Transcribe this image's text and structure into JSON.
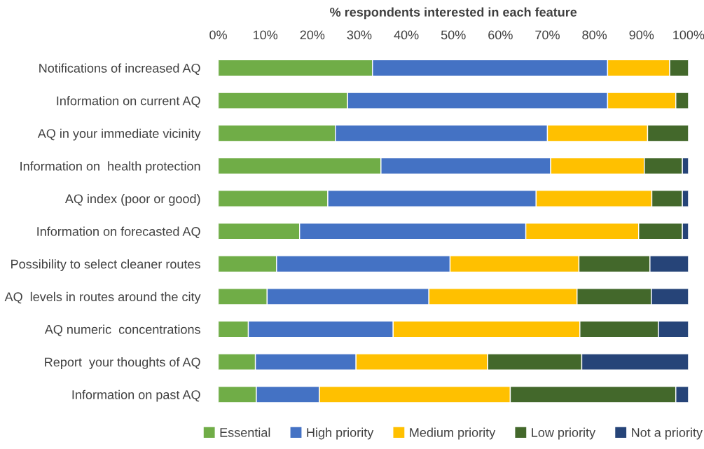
{
  "chart_data": {
    "type": "bar",
    "orientation": "horizontal",
    "stacked": true,
    "xlabel": "% respondents interested in each feature",
    "categories": [
      "Notifications of increased AQ",
      "Information on current AQ",
      "AQ in your immediate vicinity",
      "Information on  health protection",
      "AQ index (poor or good)",
      "Information on forecasted AQ",
      "Possibility to select cleaner routes",
      "AQ  levels in routes around the city",
      "AQ numeric  concentrations",
      "Report  your thoughts of AQ",
      "Information on past AQ"
    ],
    "series": [
      {
        "name": "Essential",
        "color": "#70ad47",
        "values": [
          32.8,
          27.5,
          24.9,
          34.6,
          23.3,
          17.3,
          12.4,
          10.4,
          6.4,
          7.9,
          8.1
        ]
      },
      {
        "name": "High priority",
        "color": "#4472c4",
        "values": [
          50.0,
          55.3,
          45.1,
          36.1,
          44.3,
          48.1,
          36.9,
          34.4,
          30.8,
          21.4,
          13.4
        ]
      },
      {
        "name": "Medium priority",
        "color": "#ffc000",
        "values": [
          13.2,
          14.5,
          21.3,
          19.9,
          24.6,
          24.0,
          27.4,
          31.5,
          39.7,
          28.0,
          40.6
        ]
      },
      {
        "name": "Low priority",
        "color": "#43682b",
        "values": [
          4.0,
          2.7,
          8.7,
          8.1,
          6.5,
          9.3,
          15.1,
          15.8,
          16.7,
          20.0,
          35.2
        ]
      },
      {
        "name": "Not a priority",
        "color": "#264478",
        "values": [
          null,
          null,
          null,
          1.3,
          1.3,
          1.3,
          8.2,
          7.9,
          6.4,
          22.7,
          2.7
        ]
      }
    ],
    "xlim": [
      0,
      100
    ],
    "xticks": [
      {
        "value": 0,
        "label": "0%"
      },
      {
        "value": 10,
        "label": "10%"
      },
      {
        "value": 20,
        "label": "20%"
      },
      {
        "value": 30,
        "label": "30%"
      },
      {
        "value": 40,
        "label": "40%"
      },
      {
        "value": 50,
        "label": "50%"
      },
      {
        "value": 60,
        "label": "60%"
      },
      {
        "value": 70,
        "label": "70%"
      },
      {
        "value": 80,
        "label": "80%"
      },
      {
        "value": 90,
        "label": "90%"
      },
      {
        "value": 100,
        "label": "100%"
      }
    ],
    "grid": false,
    "legend": "bottom"
  }
}
